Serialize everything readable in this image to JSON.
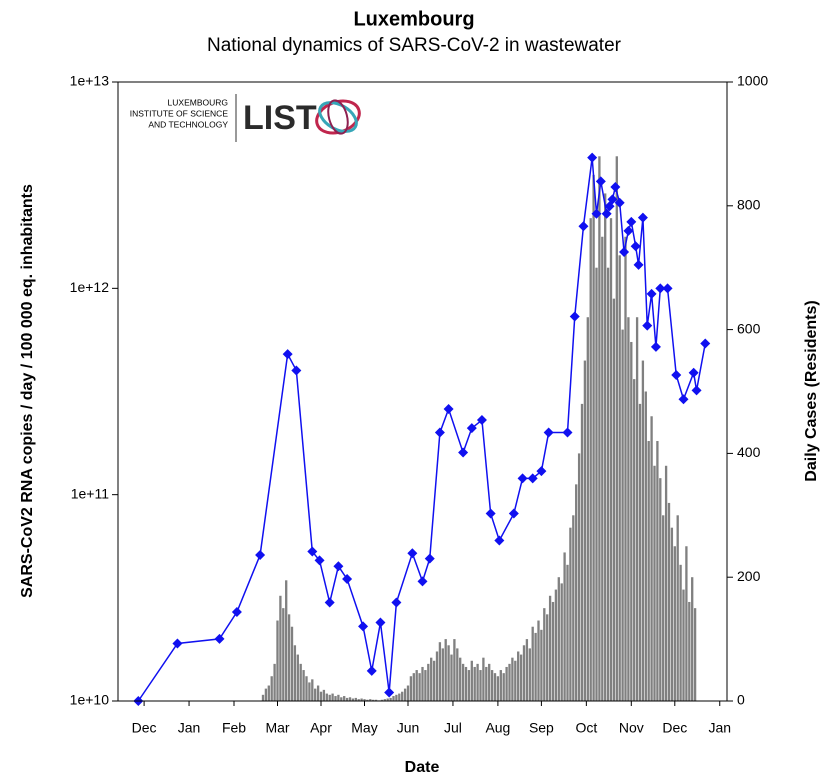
{
  "chart_data": {
    "type": "bar-line",
    "title": "Luxembourg",
    "subtitle": "National dynamics of SARS-CoV-2 in wastewater",
    "x_label": "Date",
    "y_label": "SARS-CoV2 RNA copies / day  / 100 000 eq. inhabitants",
    "y2_label": "Daily Cases (Residents)",
    "logo": {
      "lines": [
        "LUXEMBOURG",
        "INSTITUTE OF SCIENCE",
        "AND TECHNOLOGY"
      ],
      "mark": "LIST"
    },
    "xlim": [
      0,
      420
    ],
    "xticks": [
      {
        "value": 18,
        "label": "Dec"
      },
      {
        "value": 49,
        "label": "Jan"
      },
      {
        "value": 80,
        "label": "Feb"
      },
      {
        "value": 110,
        "label": "Mar"
      },
      {
        "value": 140,
        "label": "Apr"
      },
      {
        "value": 170,
        "label": "May"
      },
      {
        "value": 200,
        "label": "Jun"
      },
      {
        "value": 231,
        "label": "Jul"
      },
      {
        "value": 262,
        "label": "Aug"
      },
      {
        "value": 292,
        "label": "Sep"
      },
      {
        "value": 323,
        "label": "Oct"
      },
      {
        "value": 354,
        "label": "Nov"
      },
      {
        "value": 384,
        "label": "Dec"
      },
      {
        "value": 415,
        "label": "Jan"
      }
    ],
    "ylim": [
      10000000000,
      10000000000000
    ],
    "y_log": true,
    "yticks": [
      {
        "value": 10000000000,
        "label": "1e+10"
      },
      {
        "value": 100000000000,
        "label": "1e+11"
      },
      {
        "value": 1000000000000,
        "label": "1e+12"
      },
      {
        "value": 10000000000000,
        "label": "1e+13"
      }
    ],
    "y2lim": [
      0,
      1000
    ],
    "y2ticks": [
      0,
      200,
      400,
      600,
      800,
      1000
    ],
    "series": [
      {
        "name": "Wastewater",
        "type": "line",
        "color": "#1010f0",
        "x": [
          14,
          41,
          70,
          82,
          98,
          117,
          123,
          134,
          139,
          146,
          152,
          158,
          169,
          175,
          181,
          187,
          192,
          203,
          210,
          215,
          222,
          228,
          238,
          244,
          251,
          257,
          263,
          273,
          279,
          286,
          292,
          297,
          310,
          315,
          321,
          327,
          330,
          333,
          337,
          339,
          341,
          343,
          346,
          349,
          352,
          354,
          357,
          359,
          362,
          365,
          368,
          371,
          374,
          379,
          385,
          390,
          397,
          399,
          405
        ],
        "values": [
          10000000000.0,
          19000000000.0,
          20000000000.0,
          27000000000.0,
          51000000000.0,
          480000000000.0,
          400000000000.0,
          53000000000.0,
          48000000000.0,
          30000000000.0,
          45000000000.0,
          39000000000.0,
          23000000000.0,
          14000000000.0,
          24000000000.0,
          11000000000.0,
          30000000000.0,
          52000000000.0,
          38000000000.0,
          49000000000.0,
          200000000000.0,
          260000000000.0,
          160000000000.0,
          210000000000.0,
          230000000000.0,
          81000000000.0,
          60000000000.0,
          81000000000.0,
          120000000000.0,
          120000000000.0,
          130000000000.0,
          200000000000.0,
          200000000000.0,
          730000000000.0,
          2000000000000.0,
          4300000000000.0,
          2300000000000.0,
          3300000000000.0,
          2300000000000.0,
          2500000000000.0,
          2700000000000.0,
          3100000000000.0,
          2600000000000.0,
          1500000000000.0,
          1900000000000.0,
          2100000000000.0,
          1600000000000.0,
          1300000000000.0,
          2200000000000.0,
          660000000000.0,
          940000000000.0,
          520000000000.0,
          1000000000000.0,
          1000000000000.0,
          380000000000.0,
          290000000000.0,
          390000000000.0,
          320000000000.0,
          540000000000.0
        ]
      },
      {
        "name": "Daily cases",
        "type": "bar",
        "axis": "y2",
        "color": "#808080",
        "x": [
          100,
          102,
          104,
          106,
          108,
          110,
          112,
          114,
          116,
          118,
          120,
          122,
          124,
          126,
          128,
          130,
          132,
          134,
          136,
          138,
          140,
          142,
          144,
          146,
          148,
          150,
          152,
          154,
          156,
          158,
          160,
          162,
          164,
          166,
          168,
          170,
          172,
          174,
          176,
          178,
          180,
          182,
          184,
          186,
          188,
          190,
          192,
          194,
          196,
          198,
          200,
          202,
          204,
          206,
          208,
          210,
          212,
          214,
          216,
          218,
          220,
          222,
          224,
          226,
          228,
          230,
          232,
          234,
          236,
          238,
          240,
          242,
          244,
          246,
          248,
          250,
          252,
          254,
          256,
          258,
          260,
          262,
          264,
          266,
          268,
          270,
          272,
          274,
          276,
          278,
          280,
          282,
          284,
          286,
          288,
          290,
          292,
          294,
          296,
          298,
          300,
          302,
          304,
          306,
          308,
          310,
          312,
          314,
          316,
          318,
          320,
          322,
          324,
          326,
          328,
          330,
          332,
          334,
          336,
          338,
          340,
          342,
          344,
          346,
          348,
          350,
          352,
          354,
          356,
          358,
          360,
          362,
          364,
          366,
          368,
          370,
          372,
          374,
          376,
          378,
          380,
          382,
          384,
          386,
          388,
          390,
          392,
          394,
          396,
          398
        ],
        "values": [
          10,
          20,
          25,
          40,
          60,
          130,
          170,
          150,
          195,
          140,
          120,
          90,
          75,
          60,
          50,
          40,
          30,
          35,
          20,
          25,
          15,
          18,
          12,
          10,
          12,
          8,
          10,
          6,
          8,
          5,
          6,
          4,
          5,
          3,
          4,
          3,
          2,
          3,
          2,
          2,
          1,
          2,
          3,
          4,
          5,
          8,
          10,
          12,
          15,
          20,
          25,
          40,
          45,
          50,
          45,
          55,
          50,
          60,
          70,
          65,
          80,
          95,
          85,
          100,
          90,
          75,
          100,
          85,
          70,
          60,
          55,
          50,
          65,
          55,
          60,
          50,
          70,
          55,
          60,
          50,
          45,
          40,
          50,
          45,
          55,
          60,
          70,
          65,
          80,
          75,
          90,
          100,
          85,
          120,
          110,
          130,
          115,
          150,
          140,
          170,
          160,
          180,
          200,
          190,
          240,
          220,
          280,
          300,
          350,
          400,
          480,
          550,
          620,
          780,
          850,
          700,
          880,
          750,
          820,
          700,
          780,
          650,
          880,
          720,
          600,
          750,
          620,
          580,
          520,
          620,
          480,
          550,
          500,
          420,
          460,
          380,
          420,
          360,
          300,
          380,
          320,
          280,
          250,
          300,
          220,
          180,
          250,
          160,
          200,
          150
        ]
      }
    ]
  }
}
